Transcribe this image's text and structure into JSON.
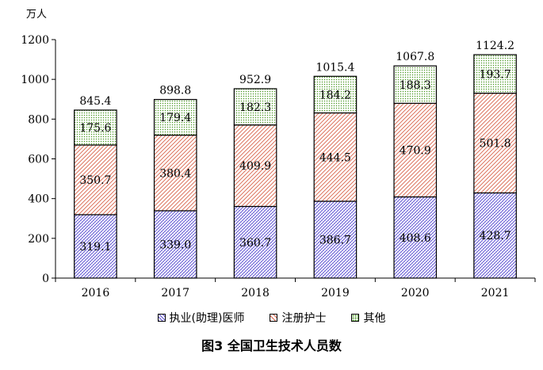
{
  "chart_data": {
    "type": "bar",
    "stacked": true,
    "title": "图3 全国卫生技术人员数",
    "ylabel": "万人",
    "xlabel": "",
    "ylim": [
      0,
      1200
    ],
    "yticks": [
      0,
      200,
      400,
      600,
      800,
      1000,
      1200
    ],
    "categories": [
      "2016",
      "2017",
      "2018",
      "2019",
      "2020",
      "2021"
    ],
    "series": [
      {
        "name": "执业(助理)医师",
        "values": [
          319.1,
          339.0,
          360.7,
          386.7,
          408.6,
          428.7
        ],
        "labels": [
          "319.1",
          "339.0",
          "360.7",
          "386.7",
          "408.6",
          "428.7"
        ],
        "color": "#5b4fd0"
      },
      {
        "name": "注册护士",
        "values": [
          350.7,
          380.4,
          409.9,
          444.5,
          470.9,
          501.8
        ],
        "labels": [
          "350.7",
          "380.4",
          "409.9",
          "444.5",
          "470.9",
          "501.8"
        ],
        "color": "#d9634b"
      },
      {
        "name": "其他",
        "values": [
          175.6,
          179.4,
          182.3,
          184.2,
          188.3,
          193.7
        ],
        "labels": [
          "175.6",
          "179.4",
          "182.3",
          "184.2",
          "188.3",
          "193.7"
        ],
        "color": "#4e9a28"
      }
    ],
    "totals": [
      845.4,
      898.8,
      952.9,
      1015.4,
      1067.8,
      1124.2
    ],
    "total_labels": [
      "845.4",
      "898.8",
      "952.9",
      "1015.4",
      "1067.8",
      "1124.2"
    ],
    "legend_position": "bottom",
    "grid": false
  }
}
